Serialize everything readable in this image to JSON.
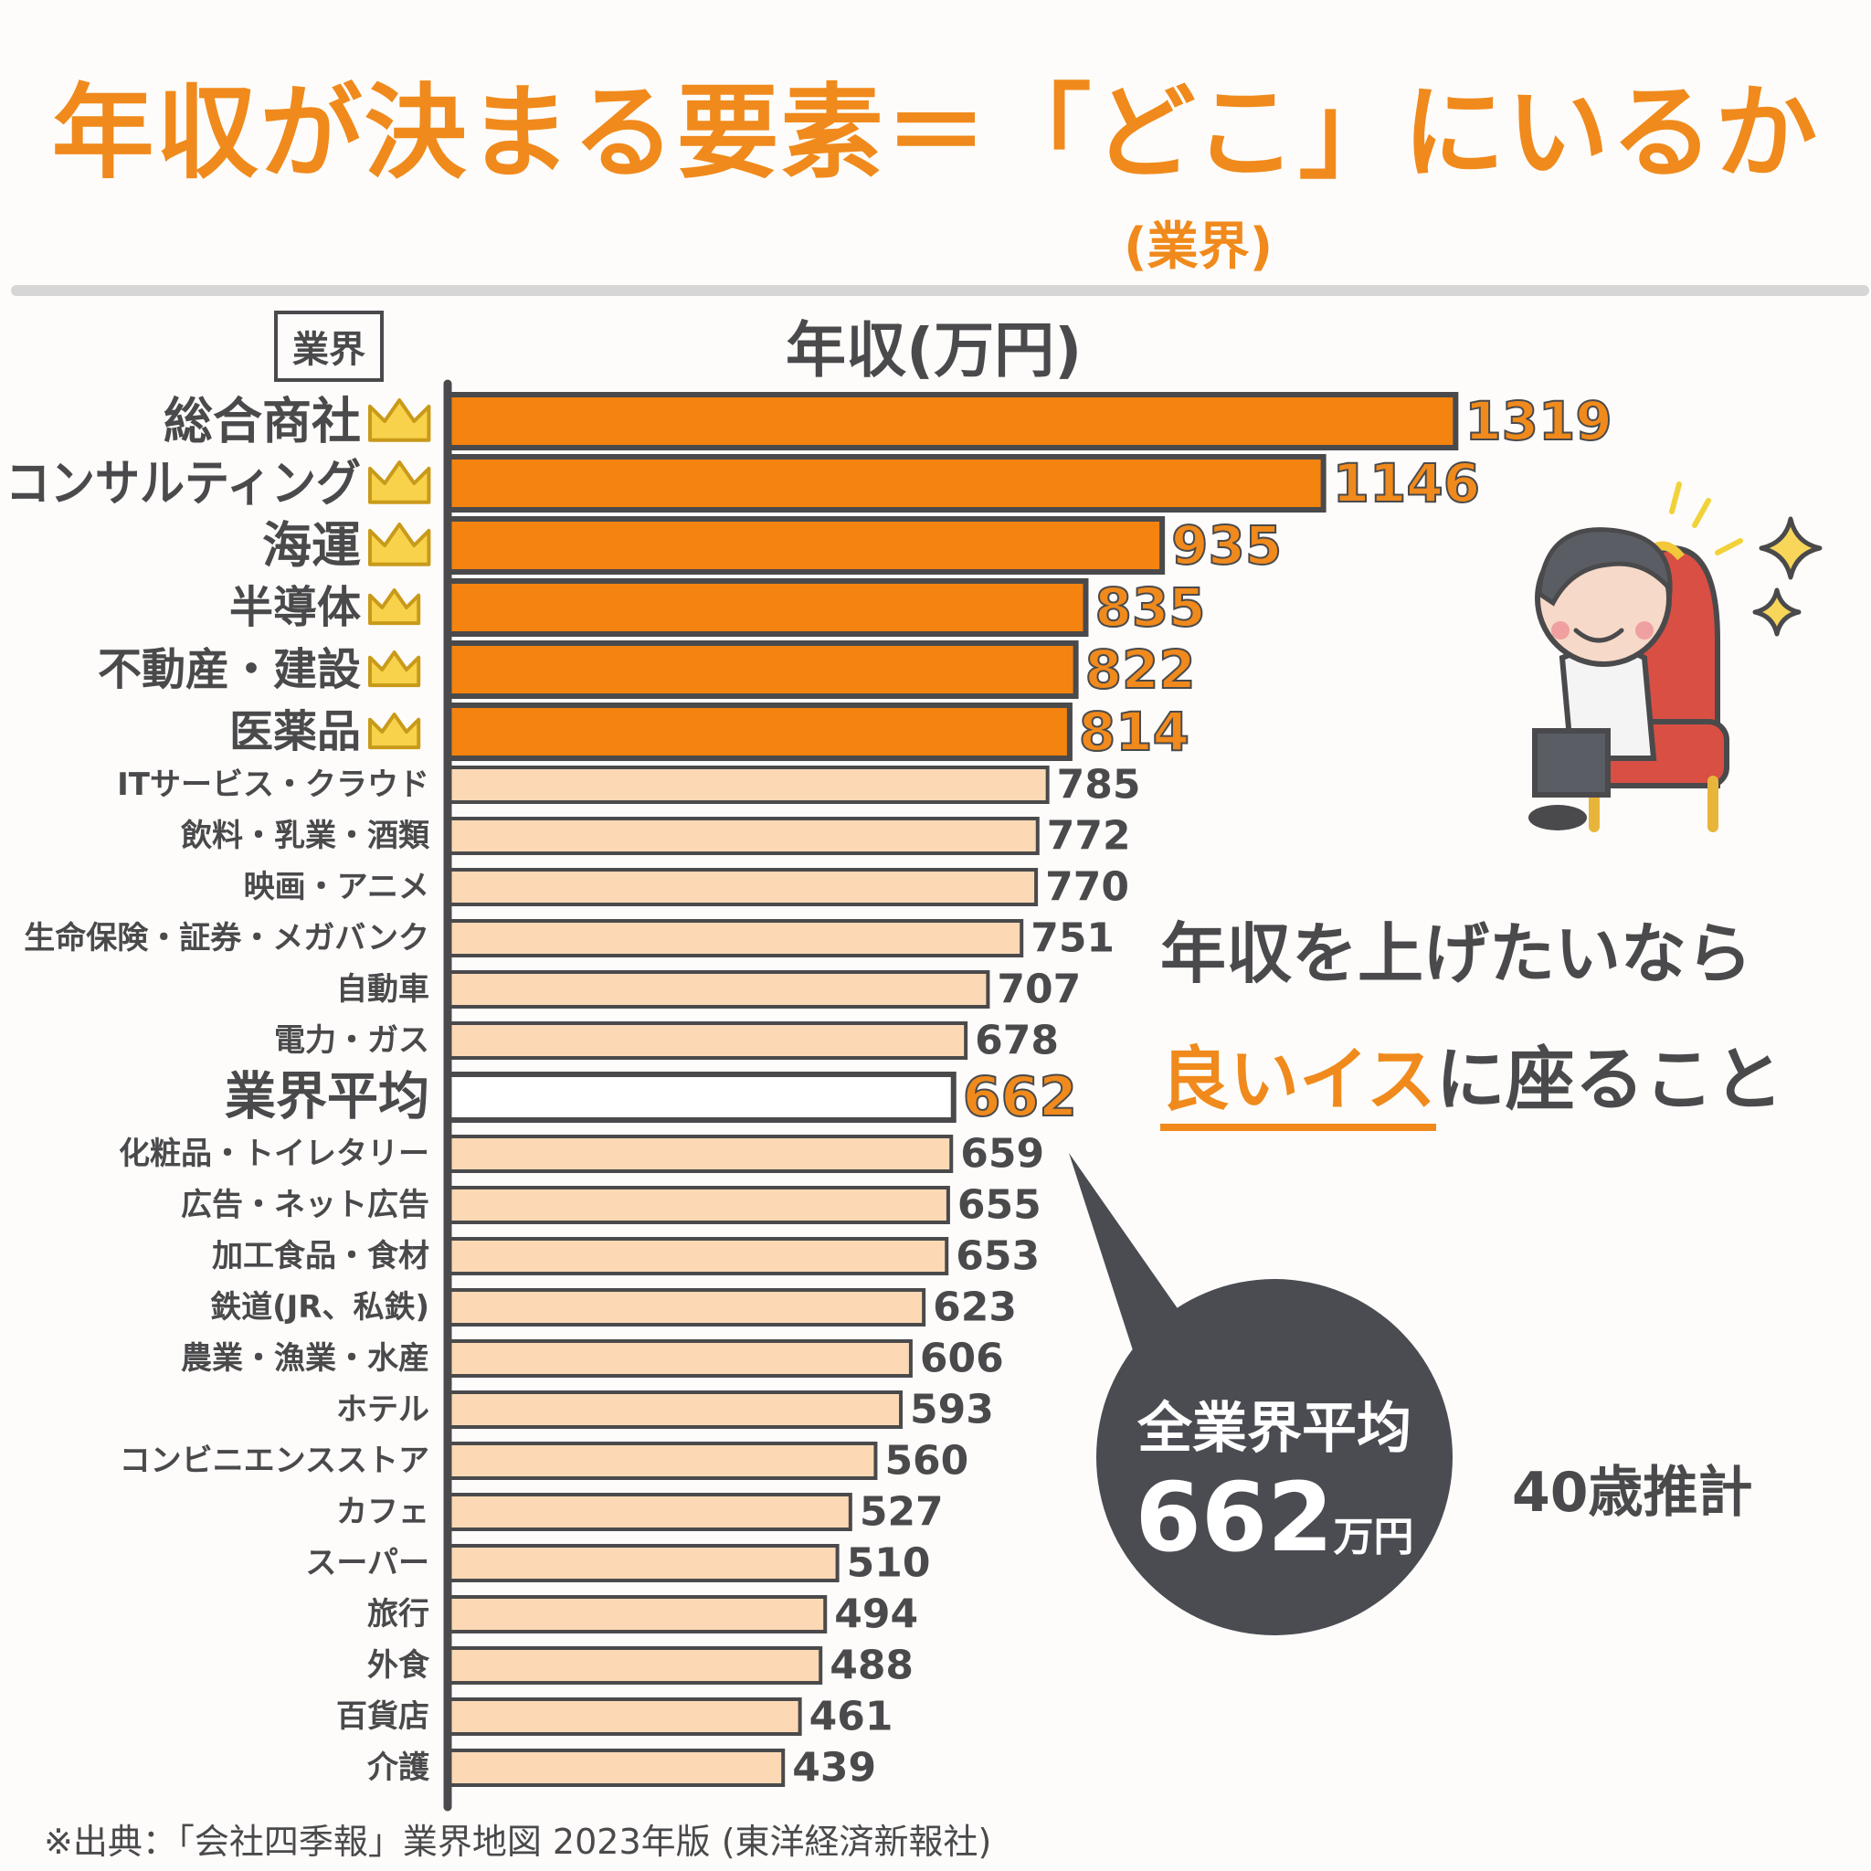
{
  "title": "年収が決まる要素＝「どこ」にいるか",
  "title_note": "(業界)",
  "industry_header": "業界",
  "cta": {
    "line1": "年収を上げたいなら",
    "line2_highlight": "良いイス",
    "line2_rest": "に座ること"
  },
  "bubble": {
    "label": "全業界平均",
    "value": "662",
    "unit": "万円"
  },
  "estimate": "40歳推計",
  "source": "※出典：「会社四季報」業界地図 2023年版 (東洋経済新報社)",
  "colors": {
    "top": "#f5830f",
    "rest": "#fcd9b4",
    "average": "#ffffff",
    "outline": "#4a4a4c",
    "accent": "#f08a1c"
  },
  "chart_data": {
    "type": "bar",
    "orientation": "horizontal",
    "ylabel": "年収(万円)",
    "categories": [
      "総合商社",
      "コンサルティング",
      "海運",
      "半導体",
      "不動産・建設",
      "医薬品",
      "ITサービス・クラウド",
      "飲料・乳業・酒類",
      "映画・アニメ",
      "生命保険・証券・メガバンク",
      "自動車",
      "電力・ガス",
      "業界平均",
      "化粧品・トイレタリー",
      "広告・ネット広告",
      "加工食品・食材",
      "鉄道(JR、私鉄)",
      "農業・漁業・水産",
      "ホテル",
      "コンビニエンスストア",
      "カフェ",
      "スーパー",
      "旅行",
      "外食",
      "百貨店",
      "介護"
    ],
    "values": [
      1319,
      1146,
      935,
      835,
      822,
      814,
      785,
      772,
      770,
      751,
      707,
      678,
      662,
      659,
      655,
      653,
      623,
      606,
      593,
      560,
      527,
      510,
      494,
      488,
      461,
      439
    ],
    "crowned": [
      true,
      true,
      true,
      true,
      true,
      true,
      false,
      false,
      false,
      false,
      false,
      false,
      false,
      false,
      false,
      false,
      false,
      false,
      false,
      false,
      false,
      false,
      false,
      false,
      false,
      false
    ],
    "average_category": "業界平均",
    "grid": false,
    "legend": "none"
  }
}
